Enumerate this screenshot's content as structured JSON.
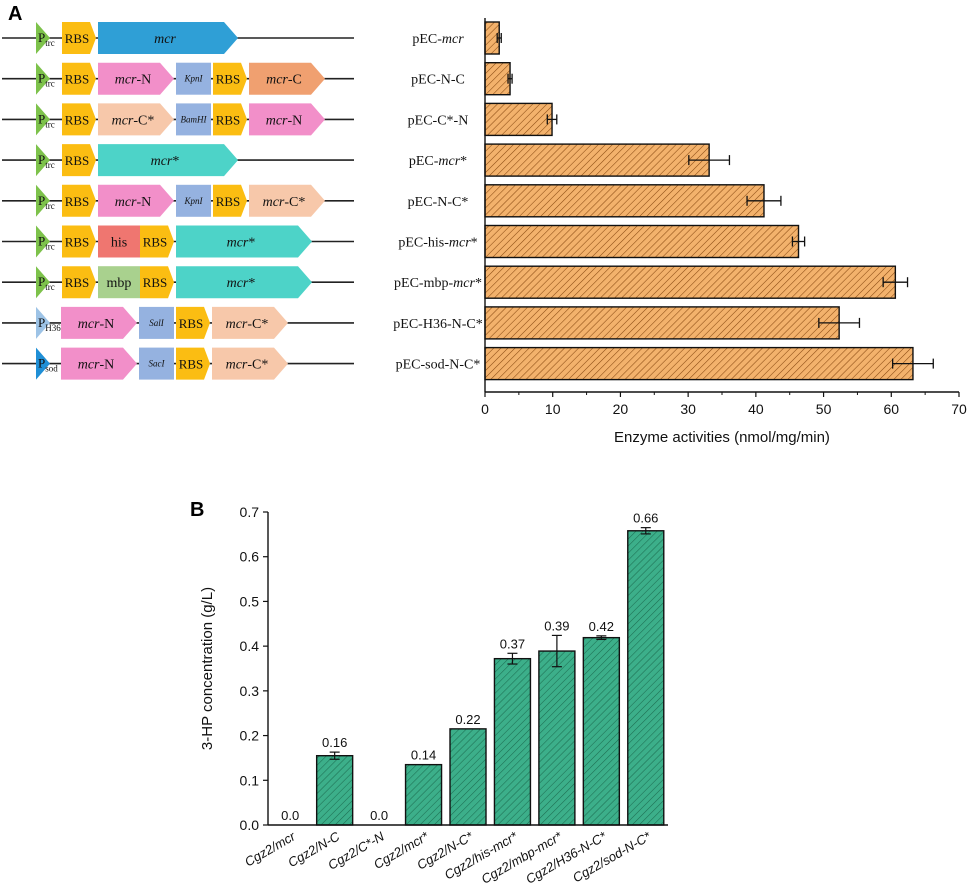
{
  "panel_labels": {
    "a": "A",
    "b": "B"
  },
  "constructs": [
    {
      "plasmid": [
        "pEC-",
        {
          "t": "mcr",
          "i": true
        }
      ],
      "promoter": {
        "p": "P",
        "sub": "trc",
        "color": "#7dc24b"
      },
      "parts": [
        {
          "type": "rbs",
          "label": "RBS"
        },
        {
          "type": "gene",
          "label": [
            {
              "t": "mcr",
              "i": true
            }
          ],
          "color": "#2f9fd6",
          "w": 140
        }
      ]
    },
    {
      "plasmid": [
        "pEC-N-C"
      ],
      "promoter": {
        "p": "P",
        "sub": "trc",
        "color": "#7dc24b"
      },
      "parts": [
        {
          "type": "rbs",
          "label": "RBS"
        },
        {
          "type": "gene",
          "label": [
            {
              "t": "mcr",
              "i": true
            },
            "-N"
          ],
          "color": "#f28fc9",
          "w": 76
        },
        {
          "type": "site",
          "label": "KpnI"
        },
        {
          "type": "rbs",
          "label": "RBS"
        },
        {
          "type": "gene",
          "label": [
            {
              "t": "mcr",
              "i": true
            },
            "-C"
          ],
          "color": "#f0a070",
          "w": 76
        }
      ]
    },
    {
      "plasmid": [
        "pEC-C*-N"
      ],
      "promoter": {
        "p": "P",
        "sub": "trc",
        "color": "#7dc24b"
      },
      "parts": [
        {
          "type": "rbs",
          "label": "RBS"
        },
        {
          "type": "gene",
          "label": [
            {
              "t": "mcr",
              "i": true
            },
            "-C*"
          ],
          "color": "#f7c8aa",
          "w": 76
        },
        {
          "type": "site",
          "label": "BamHI"
        },
        {
          "type": "rbs",
          "label": "RBS"
        },
        {
          "type": "gene",
          "label": [
            {
              "t": "mcr",
              "i": true
            },
            "-N"
          ],
          "color": "#f28fc9",
          "w": 76
        }
      ]
    },
    {
      "plasmid": [
        "pEC-",
        {
          "t": "mcr",
          "i": true
        },
        "*"
      ],
      "promoter": {
        "p": "P",
        "sub": "trc",
        "color": "#7dc24b"
      },
      "parts": [
        {
          "type": "rbs",
          "label": "RBS"
        },
        {
          "type": "gene",
          "label": [
            {
              "t": "mcr",
              "i": true
            },
            "*"
          ],
          "color": "#4dd3c8",
          "w": 140
        }
      ]
    },
    {
      "plasmid": [
        "pEC-N-C*"
      ],
      "promoter": {
        "p": "P",
        "sub": "trc",
        "color": "#7dc24b"
      },
      "parts": [
        {
          "type": "rbs",
          "label": "RBS"
        },
        {
          "type": "gene",
          "label": [
            {
              "t": "mcr",
              "i": true
            },
            "-N"
          ],
          "color": "#f28fc9",
          "w": 76
        },
        {
          "type": "site",
          "label": "KpnI"
        },
        {
          "type": "rbs",
          "label": "RBS"
        },
        {
          "type": "gene",
          "label": [
            {
              "t": "mcr",
              "i": true
            },
            "-C*"
          ],
          "color": "#f7c8aa",
          "w": 76
        }
      ]
    },
    {
      "plasmid": [
        "pEC-his-",
        {
          "t": "mcr",
          "i": true
        },
        "*"
      ],
      "promoter": {
        "p": "P",
        "sub": "trc",
        "color": "#7dc24b"
      },
      "parts": [
        {
          "type": "rbs",
          "label": "RBS"
        },
        {
          "type": "tag",
          "label": "his",
          "color": "#ef7670"
        },
        {
          "type": "rbs",
          "label": "RBS"
        },
        {
          "type": "gene",
          "label": [
            {
              "t": "mcr",
              "i": true
            },
            "*"
          ],
          "color": "#4dd3c8",
          "w": 136
        }
      ]
    },
    {
      "plasmid": [
        "pEC-mbp-",
        {
          "t": "mcr",
          "i": true
        },
        "*"
      ],
      "promoter": {
        "p": "P",
        "sub": "trc",
        "color": "#7dc24b"
      },
      "parts": [
        {
          "type": "rbs",
          "label": "RBS"
        },
        {
          "type": "tag",
          "label": "mbp",
          "color": "#a9d18e"
        },
        {
          "type": "rbs",
          "label": "RBS"
        },
        {
          "type": "gene",
          "label": [
            {
              "t": "mcr",
              "i": true
            },
            "*"
          ],
          "color": "#4dd3c8",
          "w": 136
        }
      ]
    },
    {
      "plasmid": [
        "pEC-H36-N-C*"
      ],
      "promoter": {
        "p": "P",
        "sub": "H36",
        "color": "#9dc3e6"
      },
      "parts": [
        {
          "type": "gene",
          "label": [
            {
              "t": "mcr",
              "i": true
            },
            "-N"
          ],
          "color": "#f28fc9",
          "w": 76
        },
        {
          "type": "site",
          "label": "SalI"
        },
        {
          "type": "rbs",
          "label": "RBS"
        },
        {
          "type": "gene",
          "label": [
            {
              "t": "mcr",
              "i": true
            },
            "-C*"
          ],
          "color": "#f7c8aa",
          "w": 76
        }
      ]
    },
    {
      "plasmid": [
        "pEC-sod-N-C*"
      ],
      "promoter": {
        "p": "P",
        "sub": "sod",
        "color": "#1f8fd6"
      },
      "parts": [
        {
          "type": "gene",
          "label": [
            {
              "t": "mcr",
              "i": true
            },
            "-N"
          ],
          "color": "#f28fc9",
          "w": 76
        },
        {
          "type": "site",
          "label": "SacI"
        },
        {
          "type": "rbs",
          "label": "RBS"
        },
        {
          "type": "gene",
          "label": [
            {
              "t": "mcr",
              "i": true
            },
            "-C*"
          ],
          "color": "#f7c8aa",
          "w": 76
        }
      ]
    }
  ],
  "chart_data": [
    {
      "type": "bar",
      "orientation": "horizontal",
      "panel": "A",
      "title": "",
      "categories": [
        "pEC-mcr",
        "pEC-N-C",
        "pEC-C*-N",
        "pEC-mcr*",
        "pEC-N-C*",
        "pEC-his-mcr*",
        "pEC-mbp-mcr*",
        "pEC-H36-N-C*",
        "pEC-sod-N-C*"
      ],
      "values": [
        2.1,
        3.7,
        9.9,
        33.1,
        41.2,
        46.3,
        60.6,
        52.3,
        63.2
      ],
      "errors": [
        0.3,
        0.3,
        0.7,
        3.0,
        2.5,
        0.9,
        1.8,
        3.0,
        3.0
      ],
      "xlabel": "Enzyme activities (nmol/mg/min)",
      "ylabel": "",
      "xlim": [
        0,
        70
      ],
      "xticks": [
        "0",
        "10",
        "20",
        "30",
        "40",
        "50",
        "60",
        "70"
      ],
      "bar_color": "#f3b26c",
      "hatch_color": "#8a4a12"
    },
    {
      "type": "bar",
      "orientation": "vertical",
      "panel": "B",
      "title": "",
      "categories": [
        "Cgz2/mcr",
        "Cgz2/N-C",
        "Cgz2/C*-N",
        "Cgz2/mcr*",
        "Cgz2/N-C*",
        "Cgz2/his-mcr*",
        "Cgz2/mbp-mcr*",
        "Cgz2/H36-N-C*",
        "Cgz2/sod-N-C*"
      ],
      "values": [
        0.0,
        0.155,
        0.0,
        0.135,
        0.215,
        0.372,
        0.389,
        0.419,
        0.658
      ],
      "errors": [
        0,
        0.008,
        0,
        0,
        0,
        0.012,
        0.035,
        0.004,
        0.007
      ],
      "data_labels": [
        "0.0",
        "0.16",
        "0.0",
        "0.14",
        "0.22",
        "0.37",
        "0.39",
        "0.42",
        "0.66"
      ],
      "xlabel": "",
      "ylabel": "3-HP concentration (g/L)",
      "ylim": [
        0,
        0.7
      ],
      "yticks": [
        "0.0",
        "0.1",
        "0.2",
        "0.3",
        "0.4",
        "0.5",
        "0.6",
        "0.7"
      ],
      "bar_color": "#3caf8a",
      "hatch_color": "#1d6e52"
    }
  ]
}
